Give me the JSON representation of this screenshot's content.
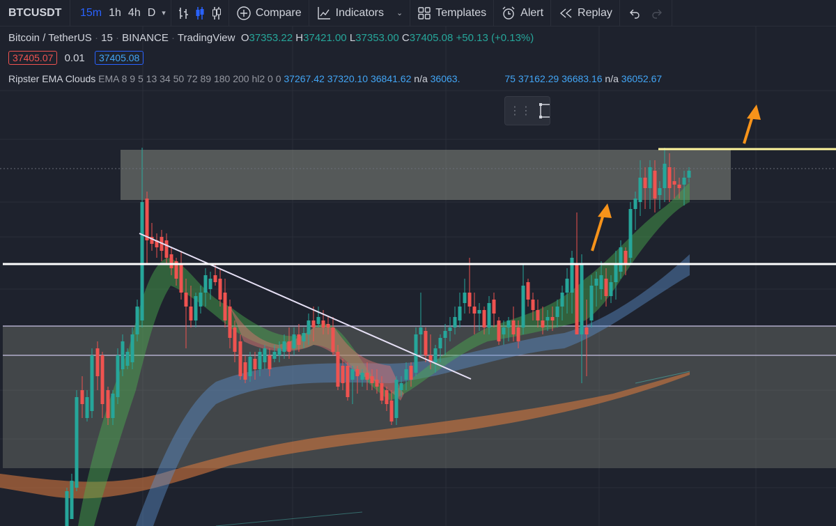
{
  "toolbar": {
    "symbol": "BTCUSDT",
    "timeframes": [
      "15m",
      "1h",
      "4h",
      "D"
    ],
    "active_timeframe": "15m",
    "compare_label": "Compare",
    "indicators_label": "Indicators",
    "templates_label": "Templates",
    "alert_label": "Alert",
    "replay_label": "Replay"
  },
  "legend": {
    "pair": "Bitcoin / TetherUS",
    "interval": "15",
    "exchange": "BINANCE",
    "source": "TradingView",
    "o_label": "O",
    "o_value": "37353.22",
    "h_label": "H",
    "h_value": "37421.00",
    "l_label": "L",
    "l_value": "37353.00",
    "c_label": "C",
    "c_value": "37405.08",
    "change": "+50.13 (+0.13%)",
    "bid": "37405.07",
    "spread": "0.01",
    "ask": "37405.08",
    "indicator_name": "Ripster EMA Clouds",
    "indicator_params": "EMA 8 9 5 13 34 50 72 89 180 200 hl2 0 0",
    "indicator_values": [
      "37267.42",
      "37320.10",
      "36841.62",
      "n/a",
      "36063.",
      "75",
      "37162.29",
      "36683.16",
      "n/a",
      "36052.67"
    ]
  },
  "colors": {
    "background": "#1e222d",
    "up": "#26a69a",
    "down": "#ef5350",
    "accent": "#2962ff",
    "value_blue": "#42a5f5",
    "zone": "#8a8d80",
    "arrow": "#f7931a",
    "resistance_line": "#fff59d"
  },
  "icons": [
    "chart-type-bars-icon",
    "candles-icon",
    "hollow-candles-icon",
    "plus-circle-icon",
    "indicators-icon",
    "templates-icon",
    "alarm-clock-icon",
    "replay-icon",
    "undo-icon",
    "redo-icon",
    "drag-handle-icon",
    "rectangle-tool-icon"
  ]
}
